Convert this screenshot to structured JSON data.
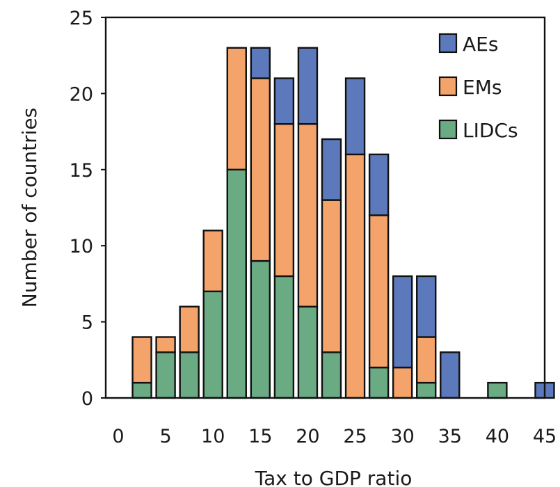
{
  "chart_data": {
    "type": "bar",
    "stacked": true,
    "title": "",
    "xlabel": "Tax to GDP ratio",
    "ylabel": "Number of countries",
    "xlim": [
      0,
      45
    ],
    "ylim": [
      0,
      25
    ],
    "xticks": [
      0,
      5,
      10,
      15,
      20,
      25,
      30,
      35,
      40,
      45
    ],
    "yticks": [
      0,
      5,
      10,
      15,
      20,
      25
    ],
    "x": [
      2.5,
      5,
      7.5,
      10,
      12.5,
      15,
      17.5,
      20,
      22.5,
      25,
      27.5,
      30,
      32.5,
      35,
      37.5,
      40,
      42.5,
      45
    ],
    "series": [
      {
        "name": "LIDCs",
        "color": "#6aab84",
        "values": [
          1,
          3,
          3,
          7,
          15,
          9,
          8,
          6,
          3,
          0,
          2,
          0,
          1,
          0,
          0,
          1,
          0,
          0
        ]
      },
      {
        "name": "EMs",
        "color": "#f4a46b",
        "values": [
          3,
          1,
          3,
          4,
          8,
          12,
          10,
          12,
          10,
          16,
          10,
          2,
          3,
          0,
          0,
          0,
          0,
          0
        ]
      },
      {
        "name": "AEs",
        "color": "#5b79bb",
        "values": [
          0,
          0,
          0,
          0,
          0,
          2,
          3,
          5,
          4,
          5,
          4,
          6,
          4,
          3,
          0,
          0,
          0,
          1
        ]
      }
    ],
    "legend_order": [
      "AEs",
      "EMs",
      "LIDCs"
    ],
    "legend_position": "top-right",
    "grid": false
  }
}
